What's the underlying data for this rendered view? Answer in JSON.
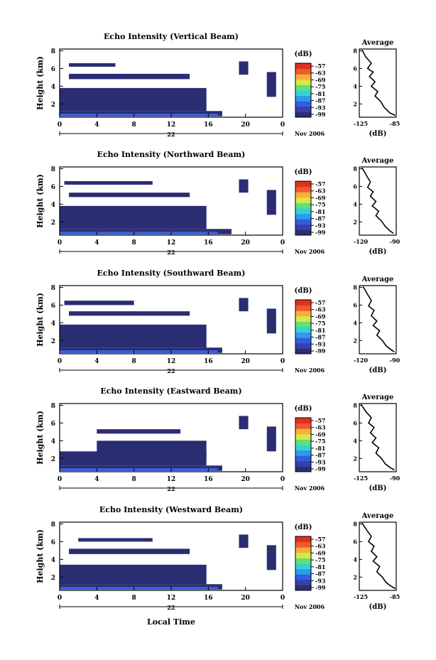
{
  "figure": {
    "xlabel": "Local Time",
    "date_label": "Nov 2006",
    "day_label": "22",
    "avg_title": "Average",
    "avg_xlabel": "(dB)",
    "colorbar_title": "(dB)",
    "ylabel": "Height (km)"
  },
  "colorbar": {
    "ticks": [
      "-57",
      "-63",
      "-69",
      "-75",
      "-81",
      "-87",
      "-93",
      "-99"
    ],
    "colors": [
      "#2b2d73",
      "#3a3ea8",
      "#2f5fe0",
      "#2f9be8",
      "#38d0d8",
      "#5fe07a",
      "#d8e84a",
      "#f6b03a",
      "#ef5a30",
      "#e0301e"
    ]
  },
  "chart_data": [
    {
      "type": "heatmap",
      "title": "Echo Intensity (Vertical Beam)",
      "x_ticks": [
        "0",
        "4",
        "8",
        "12",
        "16",
        "20",
        "0"
      ],
      "y_ticks": [
        "2",
        "4",
        "6",
        "8"
      ],
      "xlim": [
        0,
        24
      ],
      "ylim": [
        0.5,
        8.2
      ],
      "blocks": [
        {
          "x0": 0,
          "x1": 15.8,
          "y0": 1.2,
          "y1": 3.8
        },
        {
          "x0": 0,
          "x1": 17.5,
          "y0": 0.6,
          "y1": 1.2
        },
        {
          "x0": 1,
          "x1": 14,
          "y0": 4.8,
          "y1": 5.4
        },
        {
          "x0": 1,
          "x1": 6,
          "y0": 6.2,
          "y1": 6.6
        },
        {
          "x0": 19.3,
          "x1": 20.3,
          "y0": 5.3,
          "y1": 6.8
        },
        {
          "x0": 22.3,
          "x1": 23.3,
          "y0": 2.8,
          "y1": 5.6
        }
      ],
      "avg": {
        "xticks": [
          "-125",
          "-85"
        ],
        "xlim": [
          -125,
          -85
        ],
        "yticks": [
          "2",
          "4",
          "6",
          "8"
        ],
        "ylim": [
          0.5,
          8.2
        ],
        "points": [
          [
            -122,
            8.1
          ],
          [
            -118,
            7.3
          ],
          [
            -112,
            6.6
          ],
          [
            -116,
            6.0
          ],
          [
            -110,
            5.6
          ],
          [
            -114,
            5.1
          ],
          [
            -108,
            4.5
          ],
          [
            -112,
            4.0
          ],
          [
            -105,
            3.4
          ],
          [
            -108,
            2.9
          ],
          [
            -102,
            2.3
          ],
          [
            -98,
            1.6
          ],
          [
            -92,
            1.0
          ],
          [
            -86,
            0.7
          ]
        ]
      }
    },
    {
      "type": "heatmap",
      "title": "Echo Intensity (Northward Beam)",
      "x_ticks": [
        "0",
        "4",
        "8",
        "12",
        "16",
        "20",
        "0"
      ],
      "y_ticks": [
        "2",
        "4",
        "6",
        "8"
      ],
      "xlim": [
        0,
        24
      ],
      "ylim": [
        0.5,
        8.2
      ],
      "blocks": [
        {
          "x0": 0,
          "x1": 15.8,
          "y0": 1.2,
          "y1": 3.8
        },
        {
          "x0": 0,
          "x1": 18.5,
          "y0": 0.6,
          "y1": 1.2
        },
        {
          "x0": 1,
          "x1": 14,
          "y0": 4.8,
          "y1": 5.3
        },
        {
          "x0": 0.5,
          "x1": 10,
          "y0": 6.2,
          "y1": 6.6
        },
        {
          "x0": 19.3,
          "x1": 20.3,
          "y0": 5.3,
          "y1": 6.8
        },
        {
          "x0": 22.3,
          "x1": 23.3,
          "y0": 2.8,
          "y1": 5.6
        }
      ],
      "avg": {
        "xticks": [
          "-120",
          "-90"
        ],
        "xlim": [
          -125,
          -85
        ],
        "yticks": [
          "2",
          "4",
          "6",
          "8"
        ],
        "ylim": [
          0.5,
          8.2
        ],
        "points": [
          [
            -122,
            8.1
          ],
          [
            -117,
            7.2
          ],
          [
            -113,
            6.5
          ],
          [
            -116,
            5.9
          ],
          [
            -110,
            5.4
          ],
          [
            -113,
            4.9
          ],
          [
            -107,
            4.3
          ],
          [
            -111,
            3.8
          ],
          [
            -104,
            3.2
          ],
          [
            -107,
            2.7
          ],
          [
            -101,
            2.1
          ],
          [
            -97,
            1.5
          ],
          [
            -92,
            1.0
          ],
          [
            -88,
            0.7
          ]
        ]
      }
    },
    {
      "type": "heatmap",
      "title": "Echo Intensity (Southward Beam)",
      "x_ticks": [
        "0",
        "4",
        "8",
        "12",
        "16",
        "20",
        "0"
      ],
      "y_ticks": [
        "2",
        "4",
        "6",
        "8"
      ],
      "xlim": [
        0,
        24
      ],
      "ylim": [
        0.5,
        8.2
      ],
      "blocks": [
        {
          "x0": 0,
          "x1": 15.8,
          "y0": 1.2,
          "y1": 3.8
        },
        {
          "x0": 0,
          "x1": 17.5,
          "y0": 0.6,
          "y1": 1.2
        },
        {
          "x0": 1,
          "x1": 14,
          "y0": 4.8,
          "y1": 5.3
        },
        {
          "x0": 0.5,
          "x1": 8,
          "y0": 6.0,
          "y1": 6.5
        },
        {
          "x0": 19.3,
          "x1": 20.3,
          "y0": 5.3,
          "y1": 6.8
        },
        {
          "x0": 22.3,
          "x1": 23.3,
          "y0": 2.8,
          "y1": 5.6
        }
      ],
      "avg": {
        "xticks": [
          "-120",
          "-90"
        ],
        "xlim": [
          -125,
          -85
        ],
        "yticks": [
          "2",
          "4",
          "6",
          "8"
        ],
        "ylim": [
          0.5,
          8.2
        ],
        "points": [
          [
            -121,
            8.1
          ],
          [
            -116,
            7.2
          ],
          [
            -112,
            6.5
          ],
          [
            -115,
            5.9
          ],
          [
            -109,
            5.4
          ],
          [
            -112,
            4.8
          ],
          [
            -106,
            4.2
          ],
          [
            -110,
            3.7
          ],
          [
            -103,
            3.1
          ],
          [
            -106,
            2.6
          ],
          [
            -100,
            2.0
          ],
          [
            -96,
            1.4
          ],
          [
            -91,
            1.0
          ],
          [
            -87,
            0.7
          ]
        ]
      }
    },
    {
      "type": "heatmap",
      "title": "Echo Intensity (Eastward Beam)",
      "x_ticks": [
        "0",
        "4",
        "8",
        "12",
        "16",
        "20",
        "0"
      ],
      "y_ticks": [
        "2",
        "4",
        "6",
        "8"
      ],
      "xlim": [
        0,
        24
      ],
      "ylim": [
        0.5,
        8.2
      ],
      "blocks": [
        {
          "x0": 4,
          "x1": 15.8,
          "y0": 2.0,
          "y1": 4.0
        },
        {
          "x0": 0,
          "x1": 15.8,
          "y0": 1.2,
          "y1": 2.8
        },
        {
          "x0": 0,
          "x1": 17.5,
          "y0": 0.6,
          "y1": 1.2
        },
        {
          "x0": 4,
          "x1": 13,
          "y0": 4.8,
          "y1": 5.3
        },
        {
          "x0": 19.3,
          "x1": 20.3,
          "y0": 5.3,
          "y1": 6.8
        },
        {
          "x0": 22.3,
          "x1": 23.3,
          "y0": 2.8,
          "y1": 5.6
        }
      ],
      "avg": {
        "xticks": [
          "-125",
          "-90"
        ],
        "xlim": [
          -125,
          -85
        ],
        "yticks": [
          "2",
          "4",
          "6",
          "8"
        ],
        "ylim": [
          0.5,
          8.2
        ],
        "points": [
          [
            -123,
            8.1
          ],
          [
            -118,
            7.3
          ],
          [
            -112,
            6.6
          ],
          [
            -115,
            6.0
          ],
          [
            -109,
            5.5
          ],
          [
            -113,
            4.9
          ],
          [
            -107,
            4.3
          ],
          [
            -111,
            3.8
          ],
          [
            -104,
            3.2
          ],
          [
            -107,
            2.6
          ],
          [
            -101,
            2.0
          ],
          [
            -97,
            1.4
          ],
          [
            -92,
            1.0
          ],
          [
            -87,
            0.7
          ]
        ]
      }
    },
    {
      "type": "heatmap",
      "title": "Echo Intensity (Westward Beam)",
      "x_ticks": [
        "0",
        "4",
        "8",
        "12",
        "16",
        "20",
        "0"
      ],
      "y_ticks": [
        "2",
        "4",
        "6",
        "8"
      ],
      "xlim": [
        0,
        24
      ],
      "ylim": [
        0.5,
        8.2
      ],
      "blocks": [
        {
          "x0": 0,
          "x1": 15.8,
          "y0": 1.2,
          "y1": 3.4
        },
        {
          "x0": 0,
          "x1": 17.5,
          "y0": 0.6,
          "y1": 1.2
        },
        {
          "x0": 1,
          "x1": 14,
          "y0": 4.6,
          "y1": 5.2
        },
        {
          "x0": 2,
          "x1": 10,
          "y0": 6.0,
          "y1": 6.4
        },
        {
          "x0": 19.3,
          "x1": 20.3,
          "y0": 5.3,
          "y1": 6.8
        },
        {
          "x0": 22.3,
          "x1": 23.3,
          "y0": 2.8,
          "y1": 5.6
        }
      ],
      "avg": {
        "xticks": [
          "-125",
          "-85"
        ],
        "xlim": [
          -125,
          -85
        ],
        "yticks": [
          "2",
          "4",
          "6",
          "8"
        ],
        "ylim": [
          0.5,
          8.2
        ],
        "points": [
          [
            -122,
            8.1
          ],
          [
            -117,
            7.3
          ],
          [
            -112,
            6.6
          ],
          [
            -115,
            6.0
          ],
          [
            -109,
            5.5
          ],
          [
            -112,
            4.9
          ],
          [
            -106,
            4.3
          ],
          [
            -110,
            3.8
          ],
          [
            -103,
            3.2
          ],
          [
            -106,
            2.6
          ],
          [
            -100,
            2.0
          ],
          [
            -96,
            1.4
          ],
          [
            -91,
            1.0
          ],
          [
            -86,
            0.7
          ]
        ]
      }
    }
  ]
}
